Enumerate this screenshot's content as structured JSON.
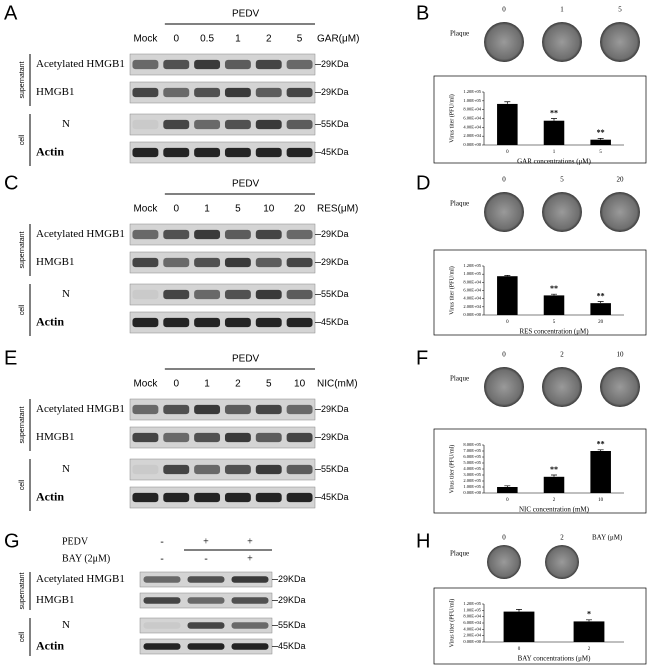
{
  "blots": [
    {
      "letter": "A",
      "header": "PEDV",
      "lanes": [
        "Mock",
        "0",
        "0.5",
        "1",
        "2",
        "5"
      ],
      "treatment": "GAR(μM)",
      "rows": [
        {
          "label": "Acetylated HMGB1",
          "size": "29KDa"
        },
        {
          "label": "HMGB1",
          "size": "29KDa"
        },
        {
          "label": "N",
          "size": "55KDa"
        },
        {
          "label": "Actin",
          "size": "45KDa"
        }
      ],
      "groups": [
        "supernatant",
        "cell"
      ]
    },
    {
      "letter": "C",
      "header": "PEDV",
      "lanes": [
        "Mock",
        "0",
        "1",
        "5",
        "10",
        "20"
      ],
      "treatment": "RES(μM)",
      "rows": [
        {
          "label": "Acetylated HMGB1",
          "size": "29KDa"
        },
        {
          "label": "HMGB1",
          "size": "29KDa"
        },
        {
          "label": "N",
          "size": "55KDa"
        },
        {
          "label": "Actin",
          "size": "45KDa"
        }
      ],
      "groups": [
        "supernatant",
        "cell"
      ]
    },
    {
      "letter": "E",
      "header": "PEDV",
      "lanes": [
        "Mock",
        "0",
        "1",
        "2",
        "5",
        "10"
      ],
      "treatment": "NIC(mM)",
      "rows": [
        {
          "label": "Acetylated HMGB1",
          "size": "29KDa"
        },
        {
          "label": "HMGB1",
          "size": "29KDa"
        },
        {
          "label": "N",
          "size": "55KDa"
        },
        {
          "label": "Actin",
          "size": "45KDa"
        }
      ],
      "groups": [
        "supernatant",
        "cell"
      ]
    },
    {
      "letter": "G",
      "conditions": [
        {
          "label": "PEDV",
          "signs": [
            "-",
            "+",
            "+"
          ]
        },
        {
          "label": "BAY (2μM)",
          "signs": [
            "-",
            "-",
            "+"
          ]
        }
      ],
      "rows": [
        {
          "label": "Acetylated HMGB1",
          "size": "29KDa"
        },
        {
          "label": "HMGB1",
          "size": "29KDa"
        },
        {
          "label": "N",
          "size": "55KDa"
        },
        {
          "label": "Actin",
          "size": "45KDa"
        }
      ],
      "groups": [
        "supernatant",
        "cell"
      ]
    }
  ],
  "chart_data": [
    {
      "type": "bar",
      "panel_label": "B",
      "plaque_label": "Plaque",
      "doses": [
        "0",
        "1",
        "5"
      ],
      "dose_unit": "GAR (μM)",
      "categories": [
        "0",
        "1",
        "5"
      ],
      "values": [
        93000,
        55000,
        12000
      ],
      "errors": [
        5000,
        5000,
        3000
      ],
      "stars": [
        null,
        "**",
        "**"
      ],
      "color": "#000000",
      "ylabel": "Virus titer (PFU/ml)",
      "xlabel": "GAR concentrations (μM)",
      "ylim": [
        0,
        120000
      ],
      "yticks": [
        {
          "value": 0,
          "label": "0.00E+00"
        },
        {
          "value": 20000,
          "label": "2.00E+04"
        },
        {
          "value": 40000,
          "label": "4.00E+04"
        },
        {
          "value": 60000,
          "label": "6.00E+04"
        },
        {
          "value": 80000,
          "label": "8.00E+04"
        },
        {
          "value": 100000,
          "label": "1.00E+05"
        },
        {
          "value": 120000,
          "label": "1.20E+05"
        }
      ]
    },
    {
      "type": "bar",
      "panel_label": "D",
      "plaque_label": "Plaque",
      "doses": [
        "0",
        "5",
        "20"
      ],
      "dose_unit": "RES (μM)",
      "categories": [
        "0",
        "5",
        "20"
      ],
      "values": [
        95000,
        48000,
        29000
      ],
      "errors": [
        2000,
        3000,
        4000
      ],
      "stars": [
        null,
        "**",
        "**"
      ],
      "color": "#000000",
      "ylabel": "Virus titer (PFU/ml)",
      "xlabel": "RES concentration (μM)",
      "ylim": [
        0,
        120000
      ],
      "yticks": [
        {
          "value": 0,
          "label": "0.00E+00"
        },
        {
          "value": 20000,
          "label": "2.00E+04"
        },
        {
          "value": 40000,
          "label": "4.00E+04"
        },
        {
          "value": 60000,
          "label": "6.00E+04"
        },
        {
          "value": 80000,
          "label": "8.00E+04"
        },
        {
          "value": 100000,
          "label": "1.00E+05"
        },
        {
          "value": 120000,
          "label": "1.20E+05"
        }
      ]
    },
    {
      "type": "bar",
      "panel_label": "F",
      "plaque_label": "Plaque",
      "doses": [
        "0",
        "2",
        "10"
      ],
      "dose_unit": "NIC (mM)",
      "categories": [
        "0",
        "2",
        "10"
      ],
      "values": [
        100000,
        270000,
        700000
      ],
      "errors": [
        20000,
        30000,
        20000
      ],
      "stars": [
        null,
        "**",
        "**"
      ],
      "color": "#000000",
      "ylabel": "Virus titer (PFU/ml)",
      "xlabel": "NIC concentration (mM)",
      "ylim": [
        0,
        800000
      ],
      "yticks": [
        {
          "value": 0,
          "label": "0.00E+00"
        },
        {
          "value": 100000,
          "label": "1.00E+05"
        },
        {
          "value": 200000,
          "label": "2.00E+05"
        },
        {
          "value": 300000,
          "label": "3.00E+05"
        },
        {
          "value": 400000,
          "label": "4.00E+05"
        },
        {
          "value": 500000,
          "label": "5.00E+05"
        },
        {
          "value": 600000,
          "label": "6.00E+05"
        },
        {
          "value": 700000,
          "label": "7.00E+05"
        },
        {
          "value": 800000,
          "label": "8.00E+05"
        }
      ]
    },
    {
      "type": "bar",
      "panel_label": "H",
      "plaque_label": "Plaque",
      "doses": [
        "0",
        "2"
      ],
      "dose_unit": "BAY (μM)",
      "categories": [
        "0",
        "2"
      ],
      "values": [
        96000,
        65000
      ],
      "errors": [
        7000,
        5000
      ],
      "stars": [
        null,
        "*"
      ],
      "color": "#000000",
      "ylabel": "Virus titer (PFU/ml)",
      "xlabel": "BAY concentrations (μM)",
      "ylim": [
        0,
        120000
      ],
      "yticks": [
        {
          "value": 0,
          "label": "0.00E+00"
        },
        {
          "value": 20000,
          "label": "2.00E+04"
        },
        {
          "value": 40000,
          "label": "4.00E+04"
        },
        {
          "value": 60000,
          "label": "6.00E+04"
        },
        {
          "value": 80000,
          "label": "8.00E+04"
        },
        {
          "value": 100000,
          "label": "1.00E+05"
        },
        {
          "value": 120000,
          "label": "1.20E+05"
        }
      ]
    }
  ]
}
